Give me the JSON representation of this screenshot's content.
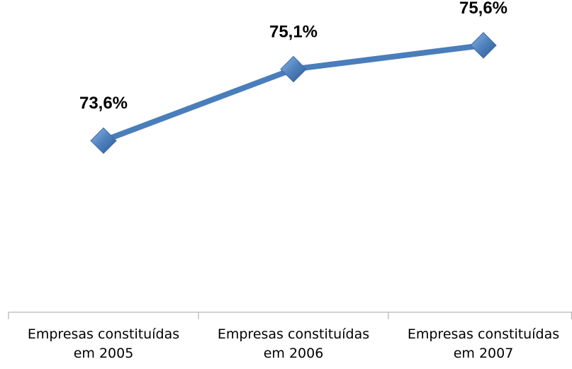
{
  "chart_data": {
    "type": "line",
    "categories": [
      "Empresas constituídas em 2005",
      "Empresas constituídas em 2006",
      "Empresas constituídas em 2007"
    ],
    "values": [
      73.6,
      75.1,
      75.6
    ],
    "value_labels": [
      "73,6%",
      "75,1%",
      "75,6%"
    ],
    "color": "#4a7ebb",
    "ylim": [
      70,
      76
    ]
  }
}
